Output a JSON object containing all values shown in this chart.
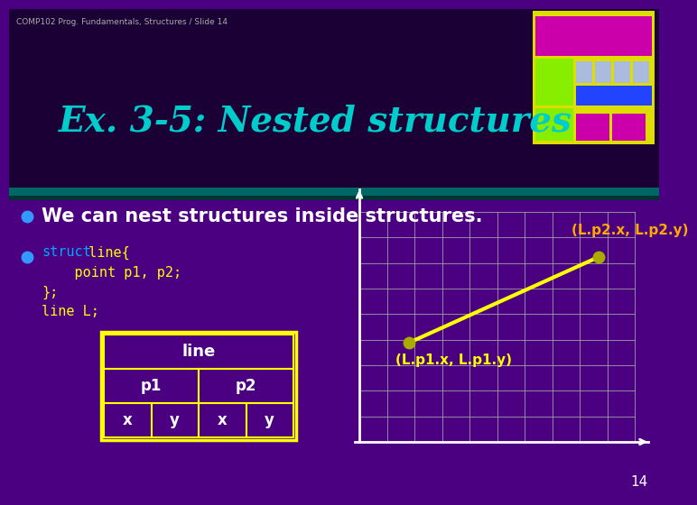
{
  "title": "Ex. 3-5: Nested structures",
  "subtitle": "COMP102 Prog. Fundamentals, Structures / Slide 14",
  "slide_number": "14",
  "bg_color": "#4b0082",
  "title_bg_color": "#1a0035",
  "title_color": "#00cccc",
  "separator_top_color": "#008080",
  "separator_bot_color": "#2d0050",
  "bullet1_text": "We can nest structures inside structures.",
  "bullet1_color": "#ffffff",
  "bullet_dot_color": "#3399ff",
  "code_keyword_color": "#00aaff",
  "code_normal_color": "#ffff00",
  "grid_color": "#aaaaaa",
  "axis_color": "#ffffff",
  "line_color": "#ffff00",
  "dot_color": "#aaaa00",
  "label_p1_text": "(L.p1.x, L.p1.y)",
  "label_p2_text": "(L.p2.x, L.p2.y)",
  "label_p1_color": "#ffff00",
  "label_p2_color": "#ffaa00",
  "table_border_color": "#ffff00",
  "table_bg_color": "#4b0082",
  "table_text_color": "#ffffff",
  "logo_yellow": "#dddd00",
  "logo_magenta": "#cc00aa",
  "logo_lime": "#88ee00",
  "logo_blue": "#2244ff",
  "logo_lavender": "#aabbdd"
}
